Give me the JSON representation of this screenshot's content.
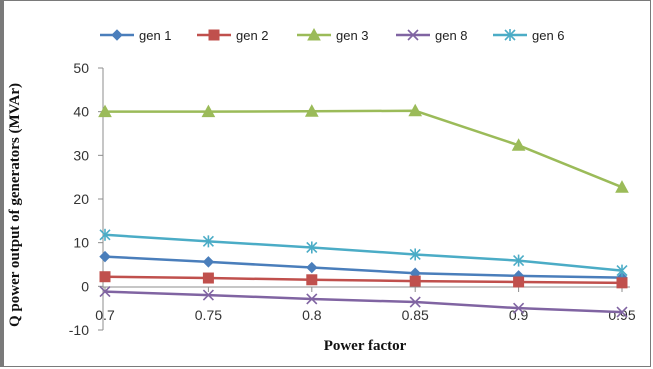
{
  "chart_data": {
    "type": "line",
    "title": "",
    "xlabel": "Power factor",
    "ylabel": "Q power output of generators (MVAr)",
    "categories": [
      "0.7",
      "0.75",
      "0.8",
      "0.85",
      "0.9",
      "0.95"
    ],
    "yticks": [
      "50",
      "40",
      "30",
      "20",
      "10",
      "0",
      "-10"
    ],
    "ylim": [
      -10,
      50
    ],
    "grid": false,
    "legend_position": "top",
    "series": [
      {
        "name": "gen 1",
        "color": "#4a7ebb",
        "marker": "diamond",
        "values": [
          6.8,
          5.6,
          4.3,
          3.0,
          2.4,
          2.0
        ]
      },
      {
        "name": "gen 2",
        "color": "#c0504d",
        "marker": "square",
        "values": [
          2.2,
          1.9,
          1.5,
          1.2,
          1.0,
          0.8
        ]
      },
      {
        "name": "gen 3",
        "color": "#9bbb59",
        "marker": "triangle",
        "values": [
          40.0,
          40.0,
          40.1,
          40.2,
          32.3,
          22.7
        ]
      },
      {
        "name": "gen 8",
        "color": "#8064a2",
        "marker": "x",
        "values": [
          -1.2,
          -2.0,
          -2.9,
          -3.6,
          -5.0,
          -5.9
        ]
      },
      {
        "name": "gen 6",
        "color": "#4bacc6",
        "marker": "star",
        "values": [
          11.8,
          10.3,
          8.9,
          7.3,
          5.9,
          3.6
        ]
      }
    ]
  }
}
